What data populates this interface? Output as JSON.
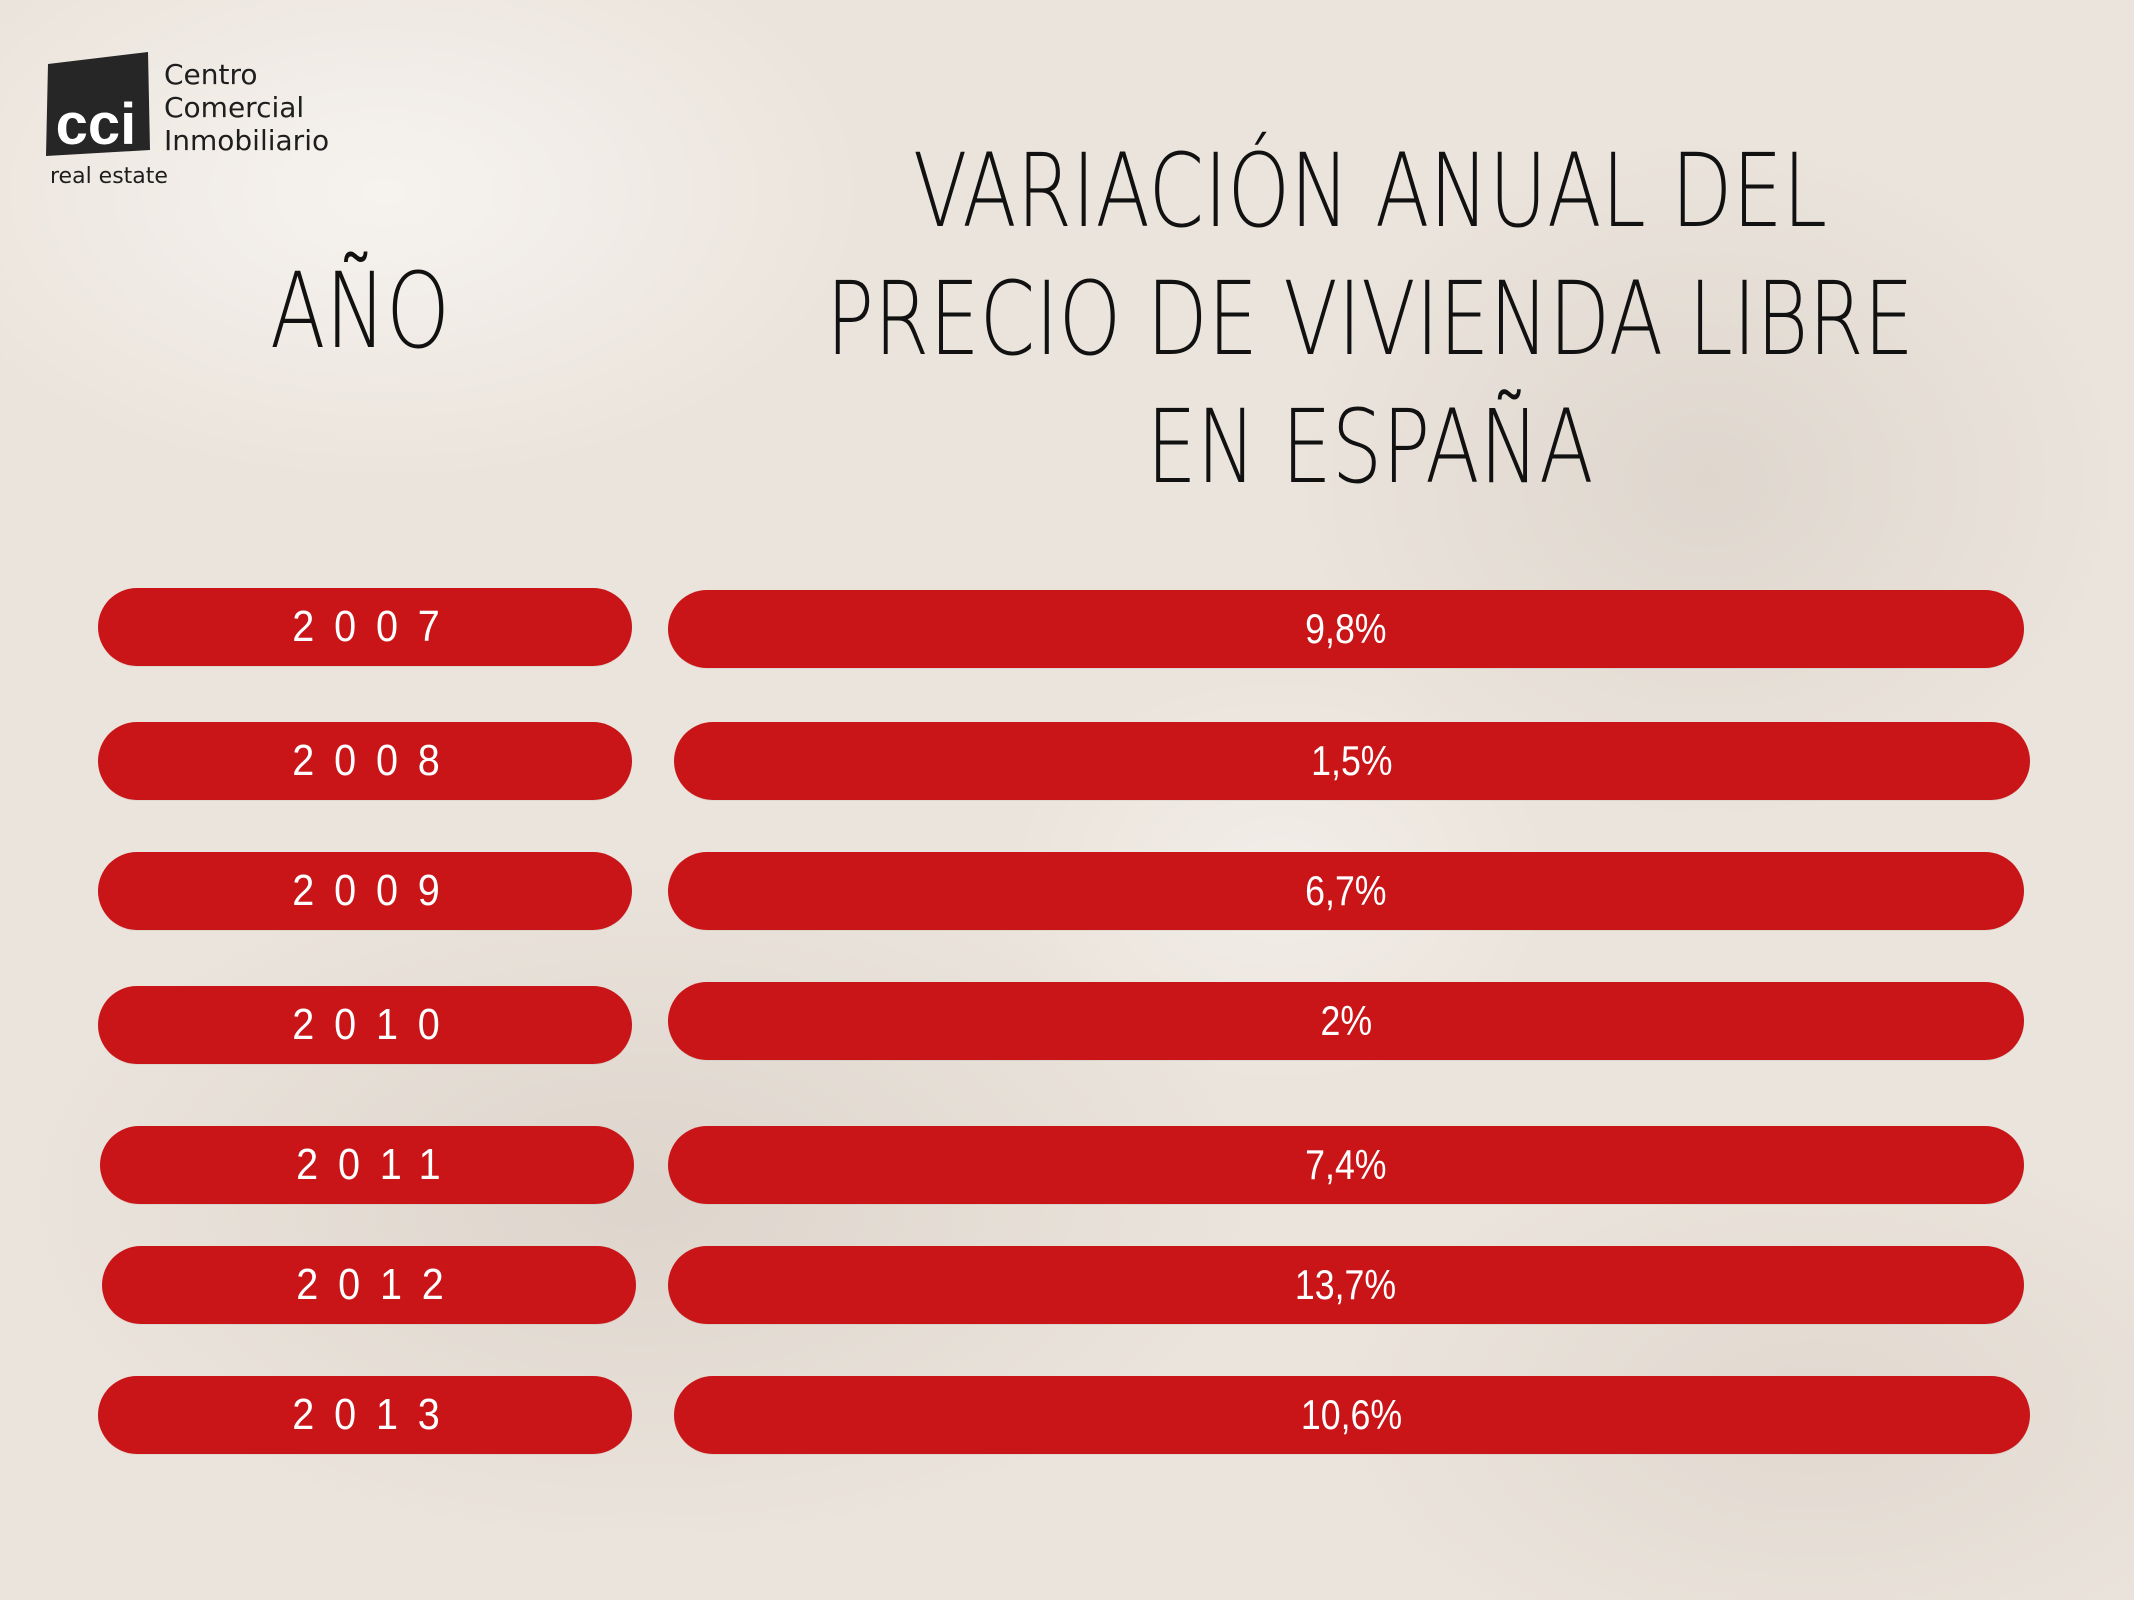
{
  "logo": {
    "mark": "cci",
    "lines": [
      "Centro",
      "Comercial",
      "Inmobiliario"
    ],
    "subtitle": "real estate"
  },
  "header": {
    "year_label": "AÑO",
    "title_lines": [
      "VARIACIÓN ANUAL DEL",
      "PRECIO DE VIVIENDA LIBRE",
      "EN ESPAÑA"
    ]
  },
  "rows": [
    {
      "year": "2007",
      "value": "9,8%"
    },
    {
      "year": "2008",
      "value": "1,5%"
    },
    {
      "year": "2009",
      "value": "6,7%"
    },
    {
      "year": "2010",
      "value": "2%"
    },
    {
      "year": "2011",
      "value": "7,4%"
    },
    {
      "year": "2012",
      "value": "13,7%"
    },
    {
      "year": "2013",
      "value": "10,6%"
    }
  ],
  "colors": {
    "pill": "#c91418",
    "pill_text": "#ffffff",
    "heading_text": "#111111",
    "background": "#ebe4dc",
    "logo_dark": "#262626"
  }
}
